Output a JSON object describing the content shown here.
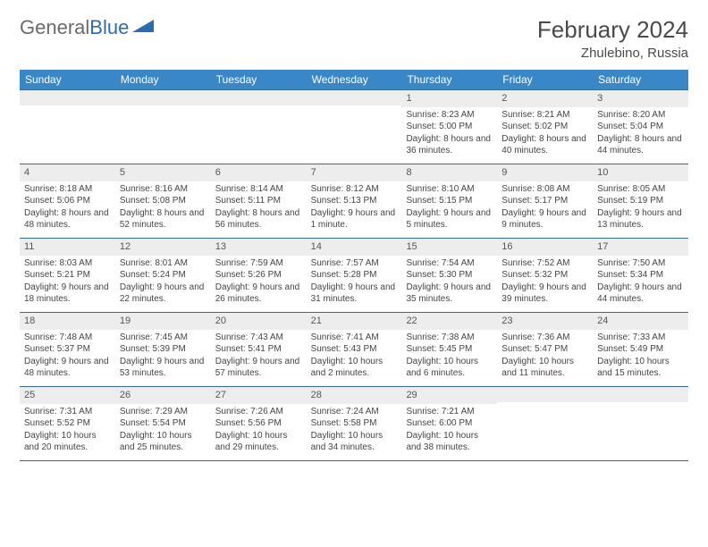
{
  "logo": {
    "first": "General",
    "second": "Blue"
  },
  "title": "February 2024",
  "location": "Zhulebino, Russia",
  "weekdays": [
    "Sunday",
    "Monday",
    "Tuesday",
    "Wednesday",
    "Thursday",
    "Friday",
    "Saturday"
  ],
  "colors": {
    "header_bar": "#3a87c7",
    "header_text": "#ffffff",
    "row_border": "#3a6a9a",
    "daynum_bg": "#ededed",
    "logo_gray": "#6a6a6a",
    "logo_blue": "#2b6cb0"
  },
  "weeks": [
    [
      {
        "empty": true
      },
      {
        "empty": true
      },
      {
        "empty": true
      },
      {
        "empty": true
      },
      {
        "num": "1",
        "sunrise": "Sunrise: 8:23 AM",
        "sunset": "Sunset: 5:00 PM",
        "daylight": "Daylight: 8 hours and 36 minutes."
      },
      {
        "num": "2",
        "sunrise": "Sunrise: 8:21 AM",
        "sunset": "Sunset: 5:02 PM",
        "daylight": "Daylight: 8 hours and 40 minutes."
      },
      {
        "num": "3",
        "sunrise": "Sunrise: 8:20 AM",
        "sunset": "Sunset: 5:04 PM",
        "daylight": "Daylight: 8 hours and 44 minutes."
      }
    ],
    [
      {
        "num": "4",
        "sunrise": "Sunrise: 8:18 AM",
        "sunset": "Sunset: 5:06 PM",
        "daylight": "Daylight: 8 hours and 48 minutes."
      },
      {
        "num": "5",
        "sunrise": "Sunrise: 8:16 AM",
        "sunset": "Sunset: 5:08 PM",
        "daylight": "Daylight: 8 hours and 52 minutes."
      },
      {
        "num": "6",
        "sunrise": "Sunrise: 8:14 AM",
        "sunset": "Sunset: 5:11 PM",
        "daylight": "Daylight: 8 hours and 56 minutes."
      },
      {
        "num": "7",
        "sunrise": "Sunrise: 8:12 AM",
        "sunset": "Sunset: 5:13 PM",
        "daylight": "Daylight: 9 hours and 1 minute."
      },
      {
        "num": "8",
        "sunrise": "Sunrise: 8:10 AM",
        "sunset": "Sunset: 5:15 PM",
        "daylight": "Daylight: 9 hours and 5 minutes."
      },
      {
        "num": "9",
        "sunrise": "Sunrise: 8:08 AM",
        "sunset": "Sunset: 5:17 PM",
        "daylight": "Daylight: 9 hours and 9 minutes."
      },
      {
        "num": "10",
        "sunrise": "Sunrise: 8:05 AM",
        "sunset": "Sunset: 5:19 PM",
        "daylight": "Daylight: 9 hours and 13 minutes."
      }
    ],
    [
      {
        "num": "11",
        "sunrise": "Sunrise: 8:03 AM",
        "sunset": "Sunset: 5:21 PM",
        "daylight": "Daylight: 9 hours and 18 minutes."
      },
      {
        "num": "12",
        "sunrise": "Sunrise: 8:01 AM",
        "sunset": "Sunset: 5:24 PM",
        "daylight": "Daylight: 9 hours and 22 minutes."
      },
      {
        "num": "13",
        "sunrise": "Sunrise: 7:59 AM",
        "sunset": "Sunset: 5:26 PM",
        "daylight": "Daylight: 9 hours and 26 minutes."
      },
      {
        "num": "14",
        "sunrise": "Sunrise: 7:57 AM",
        "sunset": "Sunset: 5:28 PM",
        "daylight": "Daylight: 9 hours and 31 minutes."
      },
      {
        "num": "15",
        "sunrise": "Sunrise: 7:54 AM",
        "sunset": "Sunset: 5:30 PM",
        "daylight": "Daylight: 9 hours and 35 minutes."
      },
      {
        "num": "16",
        "sunrise": "Sunrise: 7:52 AM",
        "sunset": "Sunset: 5:32 PM",
        "daylight": "Daylight: 9 hours and 39 minutes."
      },
      {
        "num": "17",
        "sunrise": "Sunrise: 7:50 AM",
        "sunset": "Sunset: 5:34 PM",
        "daylight": "Daylight: 9 hours and 44 minutes."
      }
    ],
    [
      {
        "num": "18",
        "sunrise": "Sunrise: 7:48 AM",
        "sunset": "Sunset: 5:37 PM",
        "daylight": "Daylight: 9 hours and 48 minutes."
      },
      {
        "num": "19",
        "sunrise": "Sunrise: 7:45 AM",
        "sunset": "Sunset: 5:39 PM",
        "daylight": "Daylight: 9 hours and 53 minutes."
      },
      {
        "num": "20",
        "sunrise": "Sunrise: 7:43 AM",
        "sunset": "Sunset: 5:41 PM",
        "daylight": "Daylight: 9 hours and 57 minutes."
      },
      {
        "num": "21",
        "sunrise": "Sunrise: 7:41 AM",
        "sunset": "Sunset: 5:43 PM",
        "daylight": "Daylight: 10 hours and 2 minutes."
      },
      {
        "num": "22",
        "sunrise": "Sunrise: 7:38 AM",
        "sunset": "Sunset: 5:45 PM",
        "daylight": "Daylight: 10 hours and 6 minutes."
      },
      {
        "num": "23",
        "sunrise": "Sunrise: 7:36 AM",
        "sunset": "Sunset: 5:47 PM",
        "daylight": "Daylight: 10 hours and 11 minutes."
      },
      {
        "num": "24",
        "sunrise": "Sunrise: 7:33 AM",
        "sunset": "Sunset: 5:49 PM",
        "daylight": "Daylight: 10 hours and 15 minutes."
      }
    ],
    [
      {
        "num": "25",
        "sunrise": "Sunrise: 7:31 AM",
        "sunset": "Sunset: 5:52 PM",
        "daylight": "Daylight: 10 hours and 20 minutes."
      },
      {
        "num": "26",
        "sunrise": "Sunrise: 7:29 AM",
        "sunset": "Sunset: 5:54 PM",
        "daylight": "Daylight: 10 hours and 25 minutes."
      },
      {
        "num": "27",
        "sunrise": "Sunrise: 7:26 AM",
        "sunset": "Sunset: 5:56 PM",
        "daylight": "Daylight: 10 hours and 29 minutes."
      },
      {
        "num": "28",
        "sunrise": "Sunrise: 7:24 AM",
        "sunset": "Sunset: 5:58 PM",
        "daylight": "Daylight: 10 hours and 34 minutes."
      },
      {
        "num": "29",
        "sunrise": "Sunrise: 7:21 AM",
        "sunset": "Sunset: 6:00 PM",
        "daylight": "Daylight: 10 hours and 38 minutes."
      },
      {
        "empty": true
      },
      {
        "empty": true
      }
    ]
  ]
}
